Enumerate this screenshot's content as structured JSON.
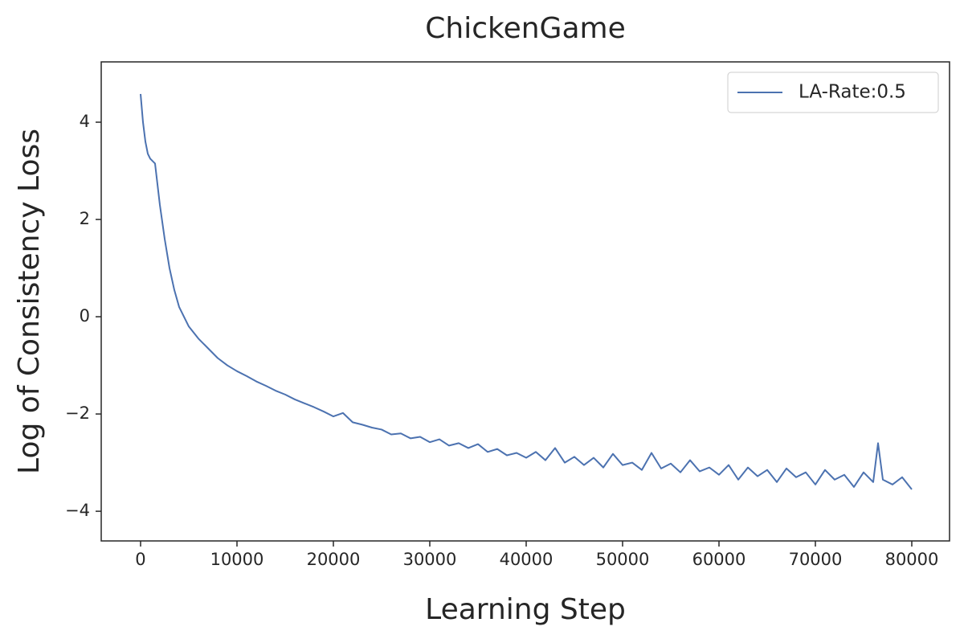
{
  "chart_data": {
    "type": "line",
    "title": "ChickenGame",
    "xlabel": "Learning Step",
    "ylabel": "Log of Consistency Loss",
    "xlim": [
      -4083,
      83917
    ],
    "ylim": [
      -4.61,
      5.24
    ],
    "xticks": [
      0,
      10000,
      20000,
      30000,
      40000,
      50000,
      60000,
      70000,
      80000
    ],
    "yticks": [
      {
        "value": -4,
        "label": "−4"
      },
      {
        "value": -2,
        "label": "−2"
      },
      0,
      2,
      4
    ],
    "legend": "upper right",
    "x": [
      0,
      250,
      500,
      750,
      1000,
      1500,
      2000,
      2500,
      3000,
      3500,
      4000,
      5000,
      6000,
      7000,
      8000,
      9000,
      10000,
      11000,
      12000,
      13000,
      14000,
      15000,
      16000,
      17000,
      18000,
      19000,
      20000,
      21000,
      22000,
      23000,
      24000,
      25000,
      26000,
      27000,
      28000,
      29000,
      30000,
      31000,
      32000,
      33000,
      34000,
      35000,
      36000,
      37000,
      38000,
      39000,
      40000,
      41000,
      42000,
      43000,
      44000,
      45000,
      46000,
      47000,
      48000,
      49000,
      50000,
      51000,
      52000,
      53000,
      54000,
      55000,
      56000,
      57000,
      58000,
      59000,
      60000,
      61000,
      62000,
      63000,
      64000,
      65000,
      66000,
      67000,
      68000,
      69000,
      70000,
      71000,
      72000,
      73000,
      74000,
      75000,
      76000,
      76500,
      77000,
      78000,
      79000,
      80000
    ],
    "series": [
      {
        "name": "LA-Rate:0.5",
        "color": "#4c72b0",
        "values": [
          4.58,
          4.0,
          3.6,
          3.35,
          3.25,
          3.15,
          2.3,
          1.6,
          1.0,
          0.55,
          0.2,
          -0.2,
          -0.45,
          -0.65,
          -0.85,
          -1.0,
          -1.12,
          -1.22,
          -1.33,
          -1.42,
          -1.52,
          -1.6,
          -1.7,
          -1.78,
          -1.86,
          -1.95,
          -2.05,
          -1.98,
          -2.17,
          -2.22,
          -2.28,
          -2.32,
          -2.42,
          -2.4,
          -2.5,
          -2.47,
          -2.58,
          -2.52,
          -2.65,
          -2.6,
          -2.7,
          -2.62,
          -2.78,
          -2.72,
          -2.85,
          -2.8,
          -2.9,
          -2.78,
          -2.95,
          -2.7,
          -3.0,
          -2.88,
          -3.05,
          -2.9,
          -3.1,
          -2.82,
          -3.05,
          -3.0,
          -3.15,
          -2.8,
          -3.12,
          -3.02,
          -3.2,
          -2.95,
          -3.18,
          -3.1,
          -3.25,
          -3.05,
          -3.35,
          -3.1,
          -3.28,
          -3.15,
          -3.4,
          -3.12,
          -3.3,
          -3.2,
          -3.45,
          -3.15,
          -3.35,
          -3.25,
          -3.5,
          -3.2,
          -3.4,
          -2.6,
          -3.35,
          -3.45,
          -3.3,
          -3.55
        ]
      }
    ]
  }
}
